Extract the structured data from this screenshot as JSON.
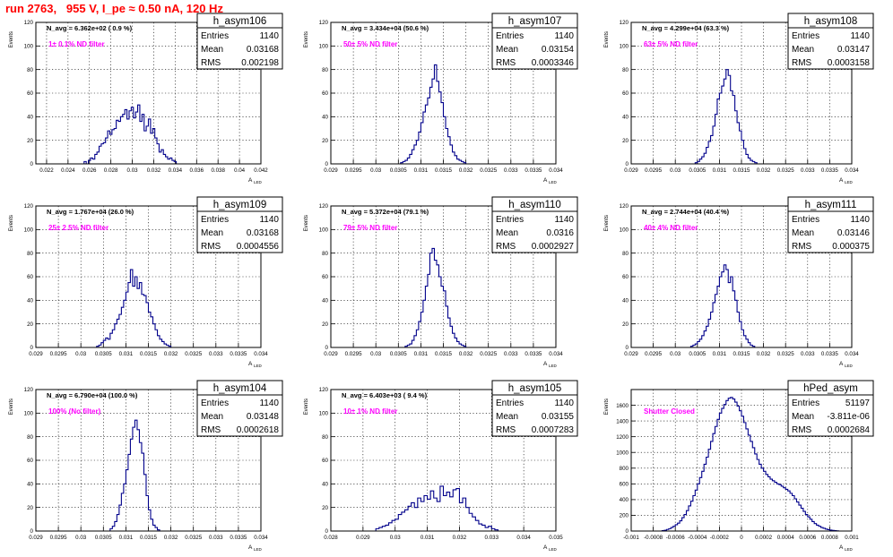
{
  "title": "run 2763,   955 V, I_pe ≈ 0.50 nA, 120 Hz",
  "stats_labels": {
    "entries": "Entries",
    "mean": "Mean",
    "rms": "RMS"
  },
  "chart_data": [
    {
      "type": "bar",
      "name": "h_asym106",
      "stats": {
        "entries": "1140",
        "mean": "0.03168",
        "rms": "0.002198"
      },
      "navg": "N_avg = 6.362e+02 ( 0.9 %)",
      "annotation": "1± 0.1% ND filter",
      "xlabel": "A",
      "xlabel_sub": "LED",
      "ylabel": "Events",
      "xlim": [
        0.021,
        0.042
      ],
      "ylim": [
        0,
        120
      ],
      "xticks": [
        "0.022",
        "0.024",
        "0.026",
        "0.028",
        "0.03",
        "0.032",
        "0.034",
        "0.036",
        "0.038",
        "0.04",
        "0.042"
      ],
      "yticks": [
        "0",
        "20",
        "40",
        "60",
        "80",
        "100",
        "120"
      ],
      "bins": {
        "start": 0.0255,
        "width": 0.0002,
        "counts": [
          2,
          0,
          3,
          5,
          4,
          8,
          10,
          15,
          17,
          18,
          22,
          28,
          25,
          29,
          30,
          37,
          36,
          40,
          42,
          46,
          38,
          45,
          48,
          39,
          44,
          50,
          36,
          42,
          28,
          32,
          38,
          26,
          30,
          22,
          17,
          10,
          12,
          8,
          6,
          4,
          5,
          3,
          2
        ]
      },
      "color": "#00008b"
    },
    {
      "type": "bar",
      "name": "h_asym107",
      "stats": {
        "entries": "1140",
        "mean": "0.03154",
        "rms": "0.0003346"
      },
      "navg": "N_avg = 3.434e+04 (50.6 %)",
      "annotation": "50± 5% ND filter",
      "xlabel": "A",
      "xlabel_sub": "LED",
      "ylabel": "Events",
      "xlim": [
        0.029,
        0.034
      ],
      "ylim": [
        0,
        120
      ],
      "xticks": [
        "0.029",
        "0.0295",
        "0.03",
        "0.0305",
        "0.031",
        "0.0315",
        "0.032",
        "0.0325",
        "0.033",
        "0.0335",
        "0.034"
      ],
      "yticks": [
        "0",
        "20",
        "40",
        "60",
        "80",
        "100",
        "120"
      ],
      "bins": {
        "start": 0.03055,
        "width": 5e-05,
        "counts": [
          1,
          2,
          3,
          5,
          8,
          12,
          16,
          20,
          27,
          35,
          44,
          50,
          56,
          65,
          72,
          84,
          70,
          61,
          52,
          40,
          30,
          23,
          16,
          10,
          7,
          4,
          3,
          2,
          1
        ]
      },
      "color": "#00008b"
    },
    {
      "type": "bar",
      "name": "h_asym108",
      "stats": {
        "entries": "1140",
        "mean": "0.03147",
        "rms": "0.0003158"
      },
      "navg": "N_avg = 4.299e+04 (63.3 %)",
      "annotation": "63± 5% ND filter",
      "xlabel": "A",
      "xlabel_sub": "LED",
      "ylabel": "Events",
      "xlim": [
        0.029,
        0.034
      ],
      "ylim": [
        0,
        120
      ],
      "xticks": [
        "0.029",
        "0.0295",
        "0.03",
        "0.0305",
        "0.031",
        "0.0315",
        "0.032",
        "0.0325",
        "0.033",
        "0.0335",
        "0.034"
      ],
      "yticks": [
        "0",
        "20",
        "40",
        "60",
        "80",
        "100",
        "120"
      ],
      "bins": {
        "start": 0.03045,
        "width": 5e-05,
        "counts": [
          1,
          2,
          4,
          6,
          9,
          14,
          19,
          24,
          32,
          42,
          55,
          60,
          66,
          72,
          80,
          75,
          62,
          58,
          45,
          35,
          28,
          20,
          13,
          8,
          5,
          3,
          2,
          1
        ]
      },
      "color": "#00008b"
    },
    {
      "type": "bar",
      "name": "h_asym109",
      "stats": {
        "entries": "1140",
        "mean": "0.03168",
        "rms": "0.0004556"
      },
      "navg": "N_avg = 1.767e+04 (26.0 %)",
      "annotation": "25± 2.5% ND filter",
      "xlabel": "A",
      "xlabel_sub": "LED",
      "ylabel": "Events",
      "xlim": [
        0.029,
        0.034
      ],
      "ylim": [
        0,
        120
      ],
      "xticks": [
        "0.029",
        "0.0295",
        "0.03",
        "0.0305",
        "0.031",
        "0.0315",
        "0.032",
        "0.0325",
        "0.033",
        "0.0335",
        "0.034"
      ],
      "yticks": [
        "0",
        "20",
        "40",
        "60",
        "80",
        "100",
        "120"
      ],
      "bins": {
        "start": 0.03035,
        "width": 5e-05,
        "counts": [
          1,
          2,
          4,
          6,
          8,
          7,
          12,
          15,
          20,
          24,
          28,
          34,
          40,
          47,
          55,
          66,
          52,
          60,
          50,
          55,
          45,
          44,
          38,
          30,
          26,
          20,
          15,
          10,
          7,
          5,
          3,
          2,
          1
        ]
      },
      "color": "#00008b"
    },
    {
      "type": "bar",
      "name": "h_asym110",
      "stats": {
        "entries": "1140",
        "mean": "0.0316",
        "rms": "0.0002927"
      },
      "navg": "N_avg = 5.372e+04 (79.1 %)",
      "annotation": "79± 5% ND filter",
      "xlabel": "A",
      "xlabel_sub": "LED",
      "ylabel": "Events",
      "xlim": [
        0.029,
        0.034
      ],
      "ylim": [
        0,
        120
      ],
      "xticks": [
        "0.029",
        "0.0295",
        "0.03",
        "0.0305",
        "0.031",
        "0.0315",
        "0.032",
        "0.0325",
        "0.033",
        "0.0335",
        "0.034"
      ],
      "yticks": [
        "0",
        "20",
        "40",
        "60",
        "80",
        "100",
        "120"
      ],
      "bins": {
        "start": 0.03065,
        "width": 5e-05,
        "counts": [
          1,
          2,
          3,
          6,
          10,
          15,
          22,
          30,
          40,
          52,
          62,
          80,
          84,
          74,
          70,
          60,
          52,
          48,
          35,
          25,
          18,
          12,
          8,
          5,
          3,
          2,
          1
        ]
      },
      "color": "#00008b"
    },
    {
      "type": "bar",
      "name": "h_asym111",
      "stats": {
        "entries": "1140",
        "mean": "0.03146",
        "rms": "0.000375"
      },
      "navg": "N_avg = 2.744e+04 (40.4 %)",
      "annotation": "40± 4% ND filter",
      "xlabel": "A",
      "xlabel_sub": "LED",
      "ylabel": "Events",
      "xlim": [
        0.029,
        0.034
      ],
      "ylim": [
        0,
        120
      ],
      "xticks": [
        "0.029",
        "0.0295",
        "0.03",
        "0.0305",
        "0.031",
        "0.0315",
        "0.032",
        "0.0325",
        "0.033",
        "0.0335",
        "0.034"
      ],
      "yticks": [
        "0",
        "20",
        "40",
        "60",
        "80",
        "100",
        "120"
      ],
      "bins": {
        "start": 0.03035,
        "width": 5e-05,
        "counts": [
          1,
          2,
          3,
          5,
          7,
          10,
          14,
          18,
          24,
          30,
          38,
          45,
          52,
          60,
          64,
          70,
          66,
          55,
          60,
          48,
          40,
          30,
          22,
          15,
          10,
          7,
          4,
          2,
          1
        ]
      },
      "color": "#00008b"
    },
    {
      "type": "bar",
      "name": "h_asym104",
      "stats": {
        "entries": "1140",
        "mean": "0.03148",
        "rms": "0.0002618"
      },
      "navg": "N_avg = 6.790e+04 (100.0 %)",
      "annotation": "100% (No filter)",
      "xlabel": "A",
      "xlabel_sub": "LED",
      "ylabel": "Events",
      "xlim": [
        0.029,
        0.034
      ],
      "ylim": [
        0,
        120
      ],
      "xticks": [
        "0.029",
        "0.0295",
        "0.03",
        "0.0305",
        "0.031",
        "0.0315",
        "0.032",
        "0.0325",
        "0.033",
        "0.0335",
        "0.034"
      ],
      "yticks": [
        "0",
        "20",
        "40",
        "60",
        "80",
        "100",
        "120"
      ],
      "bins": {
        "start": 0.03065,
        "width": 5e-05,
        "counts": [
          2,
          4,
          8,
          14,
          22,
          32,
          40,
          52,
          65,
          78,
          88,
          94,
          86,
          75,
          66,
          48,
          30,
          18,
          10,
          5,
          3,
          1
        ]
      },
      "color": "#00008b"
    },
    {
      "type": "bar",
      "name": "h_asym105",
      "stats": {
        "entries": "1140",
        "mean": "0.03155",
        "rms": "0.0007283"
      },
      "navg": "N_avg = 6.403e+03 ( 9.4 %)",
      "annotation": "10± 1% ND filter",
      "xlabel": "A",
      "xlabel_sub": "LED",
      "ylabel": "Events",
      "xlim": [
        0.028,
        0.035
      ],
      "ylim": [
        0,
        120
      ],
      "xticks": [
        "0.028",
        "0.029",
        "0.03",
        "0.031",
        "0.032",
        "0.033",
        "0.034",
        "0.035"
      ],
      "yticks": [
        "0",
        "20",
        "40",
        "60",
        "80",
        "100",
        "120"
      ],
      "bins": {
        "start": 0.0294,
        "width": 0.0001,
        "counts": [
          2,
          3,
          4,
          5,
          7,
          9,
          10,
          14,
          16,
          18,
          21,
          24,
          20,
          28,
          25,
          30,
          27,
          34,
          28,
          25,
          38,
          30,
          33,
          29,
          35,
          36,
          24,
          28,
          20,
          15,
          12,
          9,
          6,
          5,
          3,
          4,
          2,
          1
        ]
      },
      "color": "#00008b"
    },
    {
      "type": "bar",
      "name": "hPed_asym",
      "stats": {
        "entries": "51197",
        "mean": "-3.811e-06",
        "rms": "0.0002684"
      },
      "navg": "",
      "annotation": "Shutter Closed",
      "xlabel": "A",
      "xlabel_sub": "LED",
      "ylabel": "Events",
      "xlim": [
        -0.001,
        0.001
      ],
      "ylim": [
        0,
        1800
      ],
      "xticks": [
        "-0.001",
        "-0.0008",
        "-0.0006",
        "-0.0004",
        "-0.0002",
        "0",
        "0.0002",
        "0.0004",
        "0.0006",
        "0.0008",
        "0.001"
      ],
      "yticks": [
        "0",
        "200",
        "400",
        "600",
        "800",
        "1000",
        "1200",
        "1400",
        "1600"
      ],
      "bins": {
        "start": -0.00072,
        "width": 2e-05,
        "counts": [
          5,
          10,
          20,
          30,
          45,
          60,
          80,
          100,
          130,
          170,
          210,
          260,
          320,
          380,
          450,
          520,
          600,
          680,
          760,
          850,
          940,
          1040,
          1140,
          1240,
          1330,
          1420,
          1500,
          1560,
          1610,
          1660,
          1690,
          1700,
          1680,
          1640,
          1590,
          1530,
          1460,
          1380,
          1300,
          1220,
          1140,
          1060,
          980,
          910,
          850,
          800,
          760,
          720,
          690,
          660,
          640,
          620,
          600,
          590,
          570,
          550,
          530,
          510,
          480,
          450,
          410,
          370,
          330,
          290,
          250,
          210,
          180,
          150,
          120,
          95,
          75,
          60,
          45,
          35,
          25,
          18,
          12,
          8,
          5,
          3
        ]
      },
      "color": "#00008b"
    }
  ]
}
